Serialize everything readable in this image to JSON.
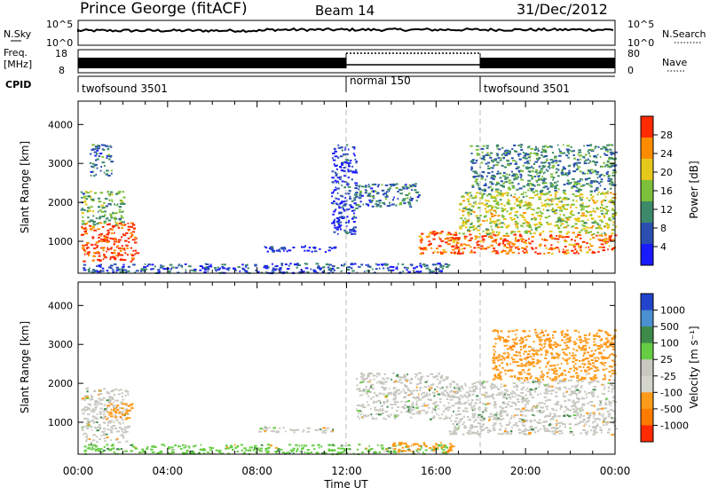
{
  "header": {
    "station": "Prince George (fitACF)",
    "beam": "Beam 14",
    "date": "31/Dec/2012"
  },
  "status_panels": {
    "nsky": {
      "label": "N.Sky",
      "ticks": [
        "10^5",
        "10^0"
      ]
    },
    "nsearch": {
      "label": "N.Search",
      "ticks": [
        "10^5",
        "10^0"
      ]
    },
    "freq": {
      "label_line1": "Freq.",
      "label_line2": "[MHz]",
      "ticks": [
        "18",
        "8"
      ]
    },
    "nave": {
      "label": "Nave",
      "ticks": [
        "80",
        "0"
      ]
    },
    "cpid": {
      "label": "CPID",
      "segments": [
        {
          "name": "twofsound 3501",
          "start_hour": 0,
          "end_hour": 12
        },
        {
          "name": "normal 150",
          "start_hour": 12,
          "end_hour": 18
        },
        {
          "name": "twofsound 3501",
          "start_hour": 18,
          "end_hour": 24
        }
      ]
    }
  },
  "chart_data": [
    {
      "type": "heatmap",
      "title": "",
      "xlabel": "Time UT",
      "ylabel": "Slant Range [km]",
      "xlim": [
        0,
        24
      ],
      "ylim": [
        180,
        4600
      ],
      "yticks": [
        "1000",
        "2000",
        "3000",
        "4000"
      ],
      "xticks": [
        "00:00",
        "04:00",
        "08:00",
        "12:00",
        "16:00",
        "20:00",
        "00:00"
      ],
      "colorbar": {
        "label": "Power [dB]",
        "ticks": [
          "28",
          "24",
          "20",
          "16",
          "12",
          "8",
          "4"
        ],
        "colors": [
          "#1a1aff",
          "#2a4fb0",
          "#3d8a6a",
          "#7dbf3a",
          "#e6c81a",
          "#ff8c00",
          "#ff2a00"
        ]
      },
      "echo_regions": [
        {
          "t0": 0.1,
          "t1": 2.6,
          "r0": 500,
          "r1": 1500,
          "value": 26
        },
        {
          "t0": 0.1,
          "t1": 2.0,
          "r0": 1400,
          "r1": 2300,
          "value": 12
        },
        {
          "t0": 0.5,
          "t1": 1.5,
          "r0": 2700,
          "r1": 3500,
          "value": 8
        },
        {
          "t0": 0.2,
          "t1": 16.5,
          "r0": 200,
          "r1": 450,
          "value": 6
        },
        {
          "t0": 8.0,
          "t1": 11.5,
          "r0": 750,
          "r1": 900,
          "value": 4
        },
        {
          "t0": 11.3,
          "t1": 12.4,
          "r0": 1200,
          "r1": 3500,
          "value": 4
        },
        {
          "t0": 12.3,
          "t1": 15.2,
          "r0": 1900,
          "r1": 2500,
          "value": 8
        },
        {
          "t0": 15.2,
          "t1": 17.0,
          "r0": 700,
          "r1": 1300,
          "value": 24
        },
        {
          "t0": 16.6,
          "t1": 24.0,
          "r0": 700,
          "r1": 1200,
          "value": 24
        },
        {
          "t0": 17.0,
          "t1": 24.0,
          "r0": 1200,
          "r1": 2300,
          "value": 16
        },
        {
          "t0": 17.5,
          "t1": 24.0,
          "r0": 2300,
          "r1": 3500,
          "value": 10
        }
      ]
    },
    {
      "type": "heatmap",
      "title": "",
      "xlabel": "Time UT",
      "ylabel": "Slant Range [km]",
      "xlim": [
        0,
        24
      ],
      "ylim": [
        180,
        4600
      ],
      "yticks": [
        "1000",
        "2000",
        "3000",
        "4000"
      ],
      "xticks": [
        "00:00",
        "04:00",
        "08:00",
        "12:00",
        "16:00",
        "20:00",
        "00:00"
      ],
      "colorbar": {
        "label": "Velocity [m s⁻¹]",
        "ticks": [
          "1000",
          "500",
          "100",
          "25",
          "-25",
          "-100",
          "-500",
          "-1000"
        ],
        "colors": [
          "#2244cc",
          "#4a8fd0",
          "#3e8a4a",
          "#66cc44",
          "#c8c8c0",
          "#d4d4cc",
          "#ff9a1a",
          "#ff7a00",
          "#ff2a00"
        ]
      },
      "echo_regions": [
        {
          "t0": 0.1,
          "t1": 2.2,
          "r0": 500,
          "r1": 1900,
          "value": 0
        },
        {
          "t0": 1.2,
          "t1": 2.4,
          "r0": 1100,
          "r1": 1500,
          "value": -300
        },
        {
          "t0": 0.2,
          "t1": 16.5,
          "r0": 200,
          "r1": 450,
          "value": 60
        },
        {
          "t0": 8.0,
          "t1": 11.5,
          "r0": 750,
          "r1": 900,
          "value": 0
        },
        {
          "t0": 12.4,
          "t1": 16.5,
          "r0": 1100,
          "r1": 2300,
          "value": 0
        },
        {
          "t0": 16.5,
          "t1": 24.0,
          "r0": 700,
          "r1": 2100,
          "value": 0
        },
        {
          "t0": 18.5,
          "t1": 24.0,
          "r0": 2100,
          "r1": 3400,
          "value": -300
        },
        {
          "t0": 14.0,
          "t1": 16.8,
          "r0": 250,
          "r1": 500,
          "value": -300
        }
      ]
    }
  ]
}
